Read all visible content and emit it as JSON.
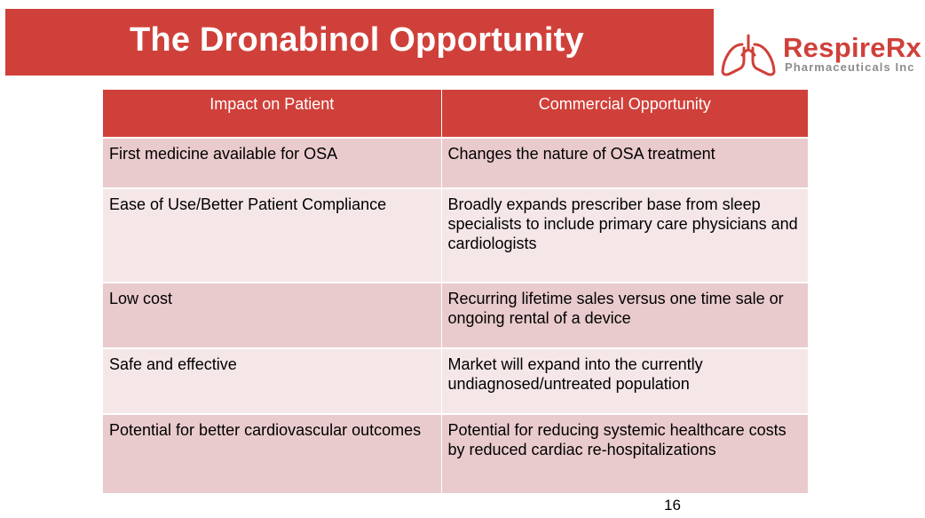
{
  "slide": {
    "title": "The Dronabinol Opportunity",
    "page_number": "16"
  },
  "logo": {
    "name": "RespireRx",
    "subtitle": "Pharmaceuticals Inc",
    "icon": "lungs-icon",
    "color": "#d0403a"
  },
  "table": {
    "headers": [
      "Impact on Patient",
      "Commercial Opportunity"
    ],
    "rows": [
      {
        "impact": "First medicine available for OSA",
        "opportunity": "Changes the nature of OSA treatment"
      },
      {
        "impact": "Ease of Use/Better Patient Compliance",
        "opportunity": "Broadly expands prescriber base from sleep specialists to include primary care physicians and cardiologists"
      },
      {
        "impact": "Low cost",
        "opportunity": "Recurring lifetime sales versus one time sale or ongoing rental of a device"
      },
      {
        "impact": "Safe and effective",
        "opportunity": "Market will expand into the currently undiagnosed/untreated population"
      },
      {
        "impact": "Potential for better cardiovascular outcomes",
        "opportunity": "Potential for reducing systemic healthcare costs by reduced cardiac re-hospitalizations"
      }
    ]
  },
  "colors": {
    "accent": "#d0403a",
    "row_dark": "#eacbcd",
    "row_light": "#f5e6e7"
  }
}
